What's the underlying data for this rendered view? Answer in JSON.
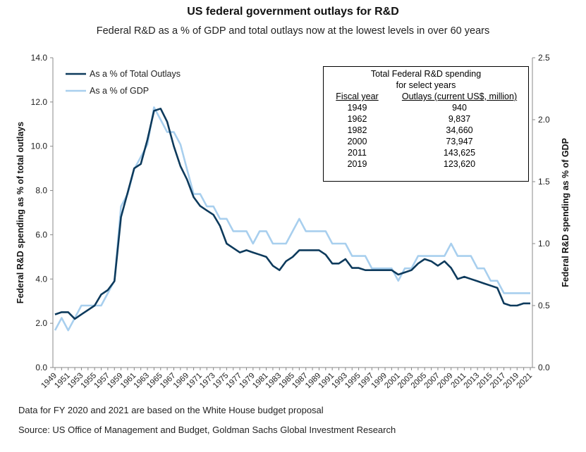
{
  "header": {
    "title": "US federal government outlays for R&D",
    "subtitle": "Federal R&D as a % of GDP and total outlays now at the lowest levels in over 60 years"
  },
  "footnotes": [
    "Data for FY 2020 and 2021 are based on the White House budget proposal",
    "Source: US Office of Management and Budget, Goldman Sachs Global Investment Research"
  ],
  "table": {
    "title": [
      "Total Federal R&D spending",
      "for select years"
    ],
    "col1": "Fiscal year",
    "col2": "Outlays (current US$, million)",
    "rows": [
      [
        "1949",
        "940"
      ],
      [
        "1962",
        "9,837"
      ],
      [
        "1982",
        "34,660"
      ],
      [
        "2000",
        "73,947"
      ],
      [
        "2011",
        "143,625"
      ],
      [
        "2019",
        "123,620"
      ]
    ]
  },
  "chart_data": {
    "type": "line",
    "title": "US federal government outlays for R&D",
    "xlabel": "",
    "ylabel": "Federal R&D spending as % of total outlays",
    "y2label": "Federal R&D spending as % of GDP",
    "ylim": [
      0,
      14
    ],
    "y2lim": [
      0,
      2.5
    ],
    "yticks": [
      "0.0",
      "2.0",
      "4.0",
      "6.0",
      "8.0",
      "10.0",
      "12.0",
      "14.0"
    ],
    "y2ticks": [
      "0.0",
      "0.5",
      "1.0",
      "1.5",
      "2.0",
      "2.5"
    ],
    "x_start": 1949,
    "x_end": 2021,
    "legend_position": "top-left",
    "series": [
      {
        "name": "As a % of Total Outlays",
        "axis": "left",
        "color": "#0d3a5c",
        "values": [
          2.4,
          2.5,
          2.5,
          2.2,
          2.4,
          2.6,
          2.8,
          3.3,
          3.5,
          3.9,
          6.8,
          7.9,
          9.0,
          9.2,
          10.3,
          11.6,
          11.7,
          11.1,
          10.0,
          9.1,
          8.5,
          7.7,
          7.3,
          7.1,
          6.9,
          6.4,
          5.6,
          5.4,
          5.2,
          5.3,
          5.2,
          5.1,
          5.0,
          4.6,
          4.4,
          4.8,
          5.0,
          5.3,
          5.3,
          5.3,
          5.3,
          5.1,
          4.7,
          4.7,
          4.9,
          4.5,
          4.5,
          4.4,
          4.4,
          4.4,
          4.4,
          4.4,
          4.2,
          4.3,
          4.4,
          4.7,
          4.9,
          4.8,
          4.6,
          4.8,
          4.5,
          4.0,
          4.1,
          4.0,
          3.9,
          3.8,
          3.7,
          3.6,
          2.9,
          2.8,
          2.8,
          2.9,
          2.9
        ]
      },
      {
        "name": "As a % of GDP",
        "axis": "right",
        "color": "#a8cfee",
        "values": [
          0.3,
          0.4,
          0.3,
          0.4,
          0.5,
          0.5,
          0.5,
          0.5,
          0.6,
          0.7,
          1.3,
          1.4,
          1.6,
          1.7,
          1.8,
          2.1,
          2.0,
          1.9,
          1.9,
          1.8,
          1.6,
          1.4,
          1.4,
          1.3,
          1.3,
          1.2,
          1.2,
          1.1,
          1.1,
          1.1,
          1.0,
          1.1,
          1.1,
          1.0,
          1.0,
          1.0,
          1.1,
          1.2,
          1.1,
          1.1,
          1.1,
          1.1,
          1.0,
          1.0,
          1.0,
          0.9,
          0.9,
          0.9,
          0.8,
          0.8,
          0.8,
          0.8,
          0.7,
          0.8,
          0.8,
          0.9,
          0.9,
          0.9,
          0.9,
          0.9,
          1.0,
          0.9,
          0.9,
          0.9,
          0.8,
          0.8,
          0.7,
          0.7,
          0.6,
          0.6,
          0.6,
          0.6,
          0.6
        ]
      }
    ]
  }
}
